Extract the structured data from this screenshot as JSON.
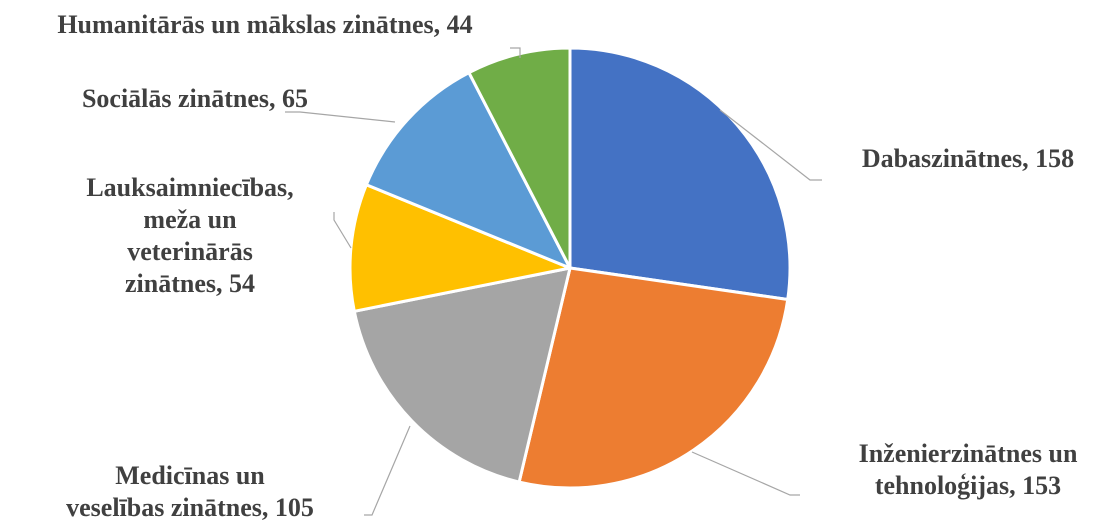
{
  "chart_data": {
    "type": "pie",
    "categories": [
      "Dabaszinātnes",
      "Inženierzinātnes un tehnoloģijas",
      "Medicīnas un veselības zinātnes",
      "Lauksaimniecības, meža un veterinārās zinātnes",
      "Sociālās zinātnes",
      "Humanitārās un mākslas zinātnes"
    ],
    "values": [
      158,
      153,
      105,
      54,
      65,
      44
    ],
    "colors": [
      "#4472C4",
      "#ED7D31",
      "#A5A5A5",
      "#FFC000",
      "#5B9BD5",
      "#70AD47"
    ],
    "labels": [
      [
        "Dabaszinātnes, 158"
      ],
      [
        "Inženierzinātnes un",
        "tehnoloģijas, 153"
      ],
      [
        "Medicīnas un",
        "veselības zinātnes, 105"
      ],
      [
        "Lauksaimniecības,",
        "meža un",
        "veterinārās",
        "zinātnes, 54"
      ],
      [
        "Sociālās zinātnes, 65"
      ],
      [
        "Humanitārās un mākslas zinātnes, 44"
      ]
    ],
    "legend": "none"
  }
}
